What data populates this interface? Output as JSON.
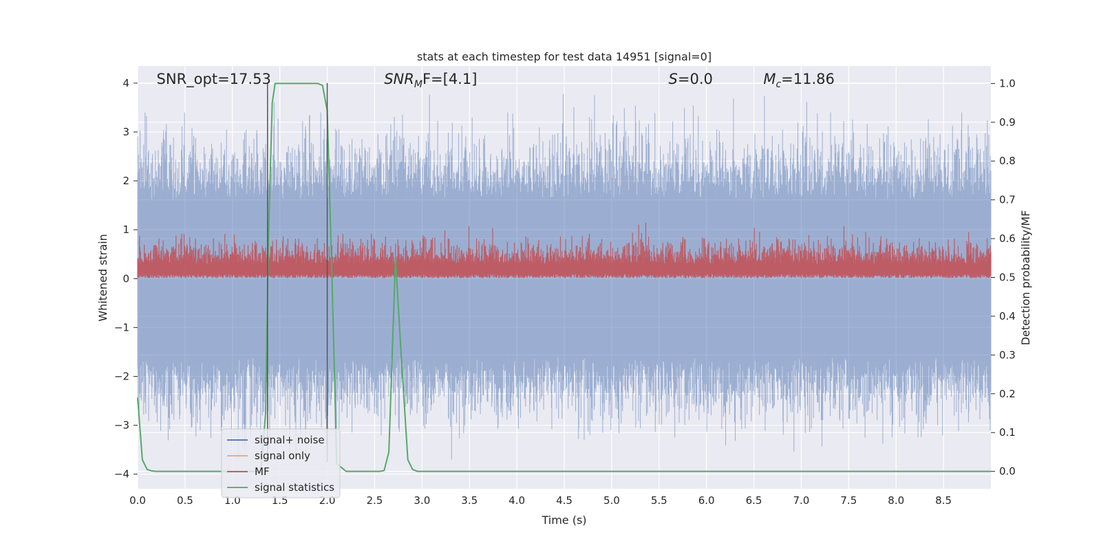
{
  "chart_data": {
    "type": "line",
    "title": "stats at each timestep for test data 14951 [signal=0]",
    "xlabel": "Time (s)",
    "ylabel": "Whitened strain",
    "ylabel_right": "Detection probability/MF",
    "xlim": [
      0.0,
      9.0
    ],
    "ylim": [
      -4.3,
      4.35
    ],
    "ylim_right": [
      -0.045,
      1.045
    ],
    "x_ticks": [
      0.0,
      0.5,
      1.0,
      1.5,
      2.0,
      2.5,
      3.0,
      3.5,
      4.0,
      4.5,
      5.0,
      5.5,
      6.0,
      6.5,
      7.0,
      7.5,
      8.0,
      8.5
    ],
    "x_tick_labels": [
      "0.0",
      "0.5",
      "1.0",
      "1.5",
      "2.0",
      "2.5",
      "3.0",
      "3.5",
      "4.0",
      "4.5",
      "5.0",
      "5.5",
      "6.0",
      "6.5",
      "7.0",
      "7.5",
      "8.0",
      "8.5"
    ],
    "y_ticks": [
      -4,
      -3,
      -2,
      -1,
      0,
      1,
      2,
      3,
      4
    ],
    "y_tick_labels": [
      "−4",
      "−3",
      "−2",
      "−1",
      "0",
      "1",
      "2",
      "3",
      "4"
    ],
    "y_right_ticks": [
      0.0,
      0.1,
      0.2,
      0.3,
      0.4,
      0.5,
      0.6,
      0.7,
      0.8,
      0.9,
      1.0
    ],
    "y_right_tick_labels": [
      "0.0",
      "0.1",
      "0.2",
      "0.3",
      "0.4",
      "0.5",
      "0.6",
      "0.7",
      "0.8",
      "0.9",
      "1.0"
    ],
    "grid": true,
    "legend_position": "bottom-left",
    "annotations": [
      {
        "text": "SNR_opt=17.53",
        "x": 0.2,
        "y": 4.0
      },
      {
        "text": "SNR_MF=[4.1]",
        "x": 2.6,
        "y": 4.0
      },
      {
        "text": "S=0.0",
        "x": 5.6,
        "y": 4.0
      },
      {
        "text": "M_c=11.86",
        "x": 6.6,
        "y": 4.0
      }
    ],
    "vertical_markers": [
      1.37,
      2.0
    ],
    "series": [
      {
        "name": "signal+ noise",
        "color": "#4c72b0",
        "style": "noise band",
        "amplitude_typical": 2.0,
        "amplitude_peak": 3.4
      },
      {
        "name": "signal only",
        "color": "#dd8452",
        "style": "line",
        "values": []
      },
      {
        "name": "MF",
        "color": "#c44e52",
        "axis": "right",
        "style": "noise band",
        "range": [
          0.5,
          0.6
        ]
      },
      {
        "name": "signal statistics",
        "color": "#55a868",
        "axis": "right",
        "x": [
          0.0,
          0.05,
          0.1,
          0.15,
          0.2,
          0.3,
          1.3,
          1.35,
          1.38,
          1.42,
          1.45,
          1.5,
          1.9,
          1.95,
          2.0,
          2.05,
          2.1,
          2.2,
          2.55,
          2.6,
          2.65,
          2.72,
          2.78,
          2.85,
          2.9,
          2.95,
          9.0
        ],
        "y": [
          0.19,
          0.03,
          0.005,
          0.001,
          0.0,
          0.0,
          0.0,
          0.15,
          0.6,
          0.95,
          1.0,
          1.0,
          1.0,
          0.995,
          0.93,
          0.5,
          0.02,
          0.0,
          0.0,
          0.002,
          0.05,
          0.55,
          0.3,
          0.03,
          0.005,
          0.0,
          0.0
        ]
      }
    ]
  }
}
